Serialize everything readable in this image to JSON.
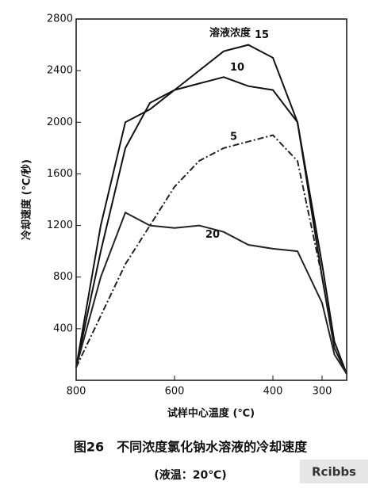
{
  "chart_data": {
    "type": "line",
    "title": "图26　不同浓度氯化钠水溶液的冷却速度",
    "subtitle": "(液温：20℃)",
    "x_label": "试样中心温度 (℃)",
    "y_label": "冷却速度 (℃/秒)",
    "legend_title": "溶液浓度",
    "watermark": "Rcibbs",
    "x": [
      800,
      750,
      700,
      650,
      600,
      550,
      500,
      450,
      400,
      350,
      300,
      275,
      250
    ],
    "xlim": [
      800,
      250
    ],
    "xticks": [
      800,
      600,
      400,
      300
    ],
    "ylim": [
      0,
      2800
    ],
    "yticks": [
      400,
      800,
      1200,
      1600,
      2000,
      2400,
      2800
    ],
    "series": [
      {
        "name": "15",
        "color": "#111111",
        "dash": "solid",
        "values": [
          100,
          1200,
          2000,
          2100,
          2250,
          2400,
          2550,
          2600,
          2500,
          2000,
          900,
          300,
          50
        ]
      },
      {
        "name": "10",
        "color": "#111111",
        "dash": "solid",
        "values": [
          100,
          1000,
          1800,
          2150,
          2250,
          2300,
          2350,
          2280,
          2250,
          2000,
          800,
          250,
          50
        ]
      },
      {
        "name": "5",
        "color": "#222222",
        "dash": "dashdot",
        "values": [
          100,
          500,
          900,
          1200,
          1500,
          1700,
          1800,
          1850,
          1900,
          1700,
          800,
          250,
          50
        ]
      },
      {
        "name": "20",
        "color": "#222222",
        "dash": "solid",
        "values": [
          100,
          800,
          1300,
          1200,
          1180,
          1200,
          1150,
          1050,
          1020,
          1000,
          600,
          200,
          50
        ]
      }
    ]
  }
}
